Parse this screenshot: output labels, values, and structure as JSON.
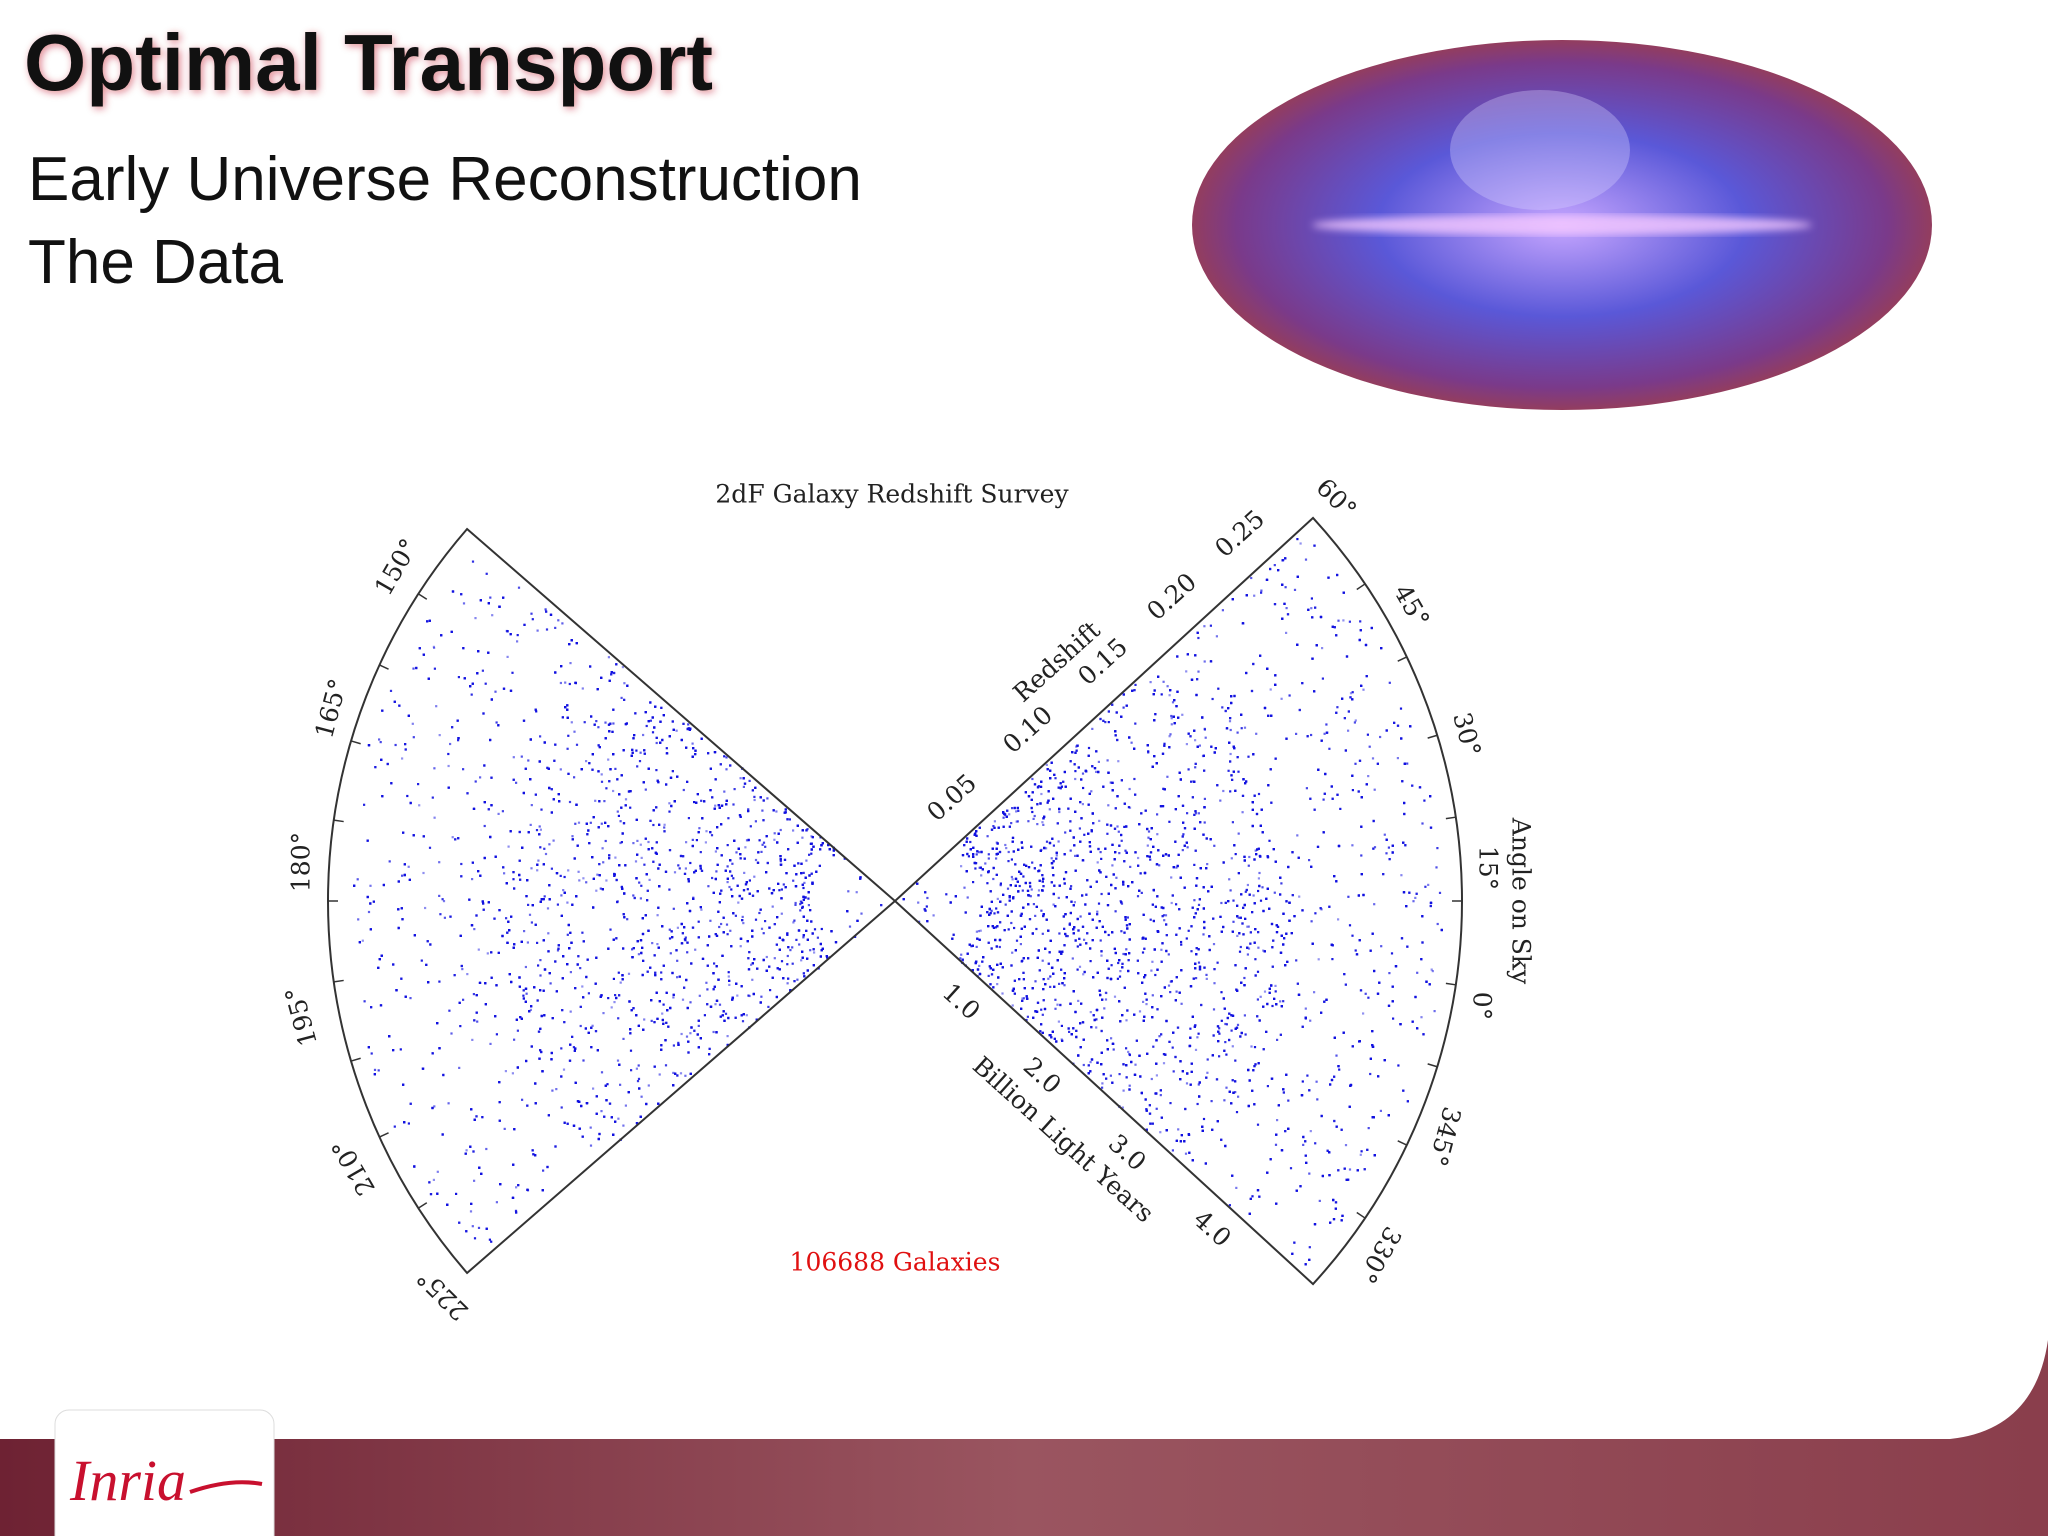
{
  "title": "Optimal Transport",
  "subtitle": [
    "Early Universe Reconstruction",
    "The Data"
  ],
  "figure": {
    "title": "2dF Galaxy Redshift Survey",
    "left_angle_labels": [
      "150°",
      "165°",
      "180°",
      "195°",
      "210°",
      "225°"
    ],
    "right_angle_labels": [
      "60°",
      "45°",
      "30°",
      "15°",
      "0°",
      "345°",
      "330°"
    ],
    "angle_axis_label": "Angle on Sky",
    "redshift_axis_label": "Redshift",
    "redshift_labels": [
      "0.05",
      "0.10",
      "0.15",
      "0.20",
      "0.25"
    ],
    "distance_axis_label": "Billion Light Years",
    "distance_labels": [
      "1.0",
      "2.0",
      "3.0",
      "4.0"
    ],
    "count_label": "106688 Galaxies"
  },
  "logo": "Inria"
}
